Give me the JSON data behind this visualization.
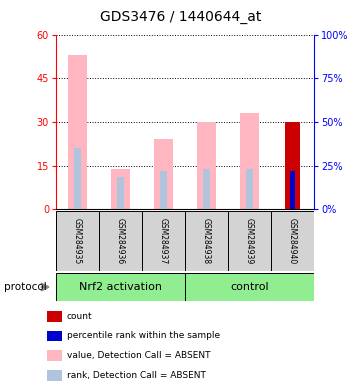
{
  "title": "GDS3476 / 1440644_at",
  "samples": [
    "GSM284935",
    "GSM284936",
    "GSM284937",
    "GSM284938",
    "GSM284939",
    "GSM284940"
  ],
  "value_absent": [
    53,
    14,
    24,
    30,
    33,
    0
  ],
  "rank_absent": [
    21,
    11,
    13,
    14,
    14,
    0
  ],
  "count_value": [
    0,
    0,
    0,
    0,
    0,
    30
  ],
  "rank_present": [
    0,
    0,
    0,
    0,
    0,
    13
  ],
  "ylim_left": [
    0,
    60
  ],
  "ylim_right": [
    0,
    100
  ],
  "yticks_left": [
    0,
    15,
    30,
    45,
    60
  ],
  "yticks_right": [
    0,
    25,
    50,
    75,
    100
  ],
  "color_value_absent": "#ffb6c1",
  "color_rank_absent": "#b0c4de",
  "color_count": "#cc0000",
  "color_rank_present": "#0000cc",
  "bg_sample": "#d3d3d3",
  "green_color": "#90ee90",
  "legend_items": [
    "count",
    "percentile rank within the sample",
    "value, Detection Call = ABSENT",
    "rank, Detection Call = ABSENT"
  ],
  "legend_colors": [
    "#cc0000",
    "#0000cc",
    "#ffb6c1",
    "#b0c4de"
  ],
  "groups": [
    [
      "Nrf2 activation",
      0,
      3
    ],
    [
      "control",
      3,
      6
    ]
  ]
}
